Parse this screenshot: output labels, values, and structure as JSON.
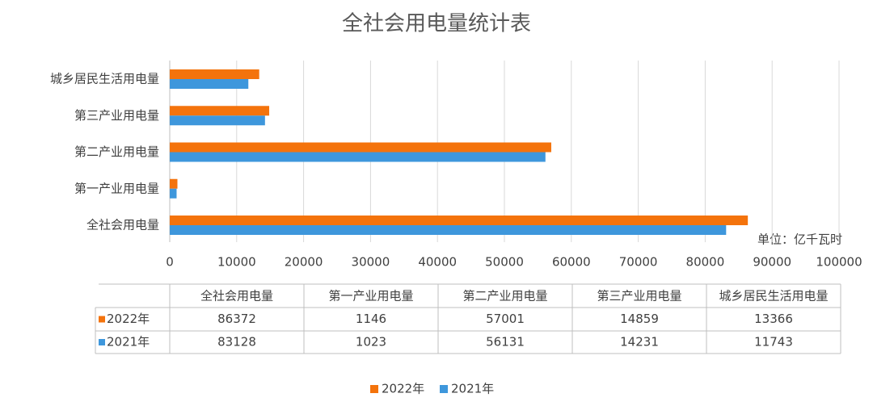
{
  "chart_data": {
    "type": "bar",
    "orientation": "horizontal",
    "title": "全社会用电量统计表",
    "unit_note": "单位：亿千瓦时",
    "categories": [
      "全社会用电量",
      "第一产业用电量",
      "第二产业用电量",
      "第三产业用电量",
      "城乡居民生活用电量"
    ],
    "series": [
      {
        "name": "2022年",
        "color": "#f4730c",
        "values": [
          86372,
          1146,
          57001,
          14859,
          13366
        ]
      },
      {
        "name": "2021年",
        "color": "#3e97dc",
        "values": [
          83128,
          1023,
          56131,
          14231,
          11743
        ]
      }
    ],
    "xlim": [
      0,
      100000
    ],
    "xticks": [
      0,
      10000,
      20000,
      30000,
      40000,
      50000,
      60000,
      70000,
      80000,
      90000,
      100000
    ],
    "grid": true
  }
}
